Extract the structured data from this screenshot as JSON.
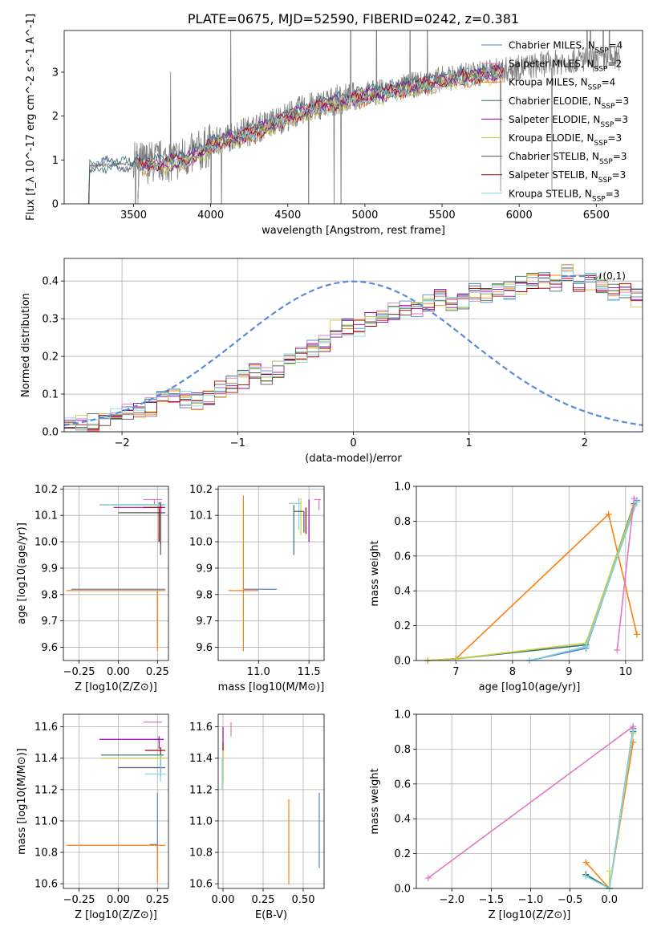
{
  "colors": {
    "c1": "#5b84c4",
    "c2": "#e377c2",
    "c3": "#ff7f0e",
    "c4": "#2f6f6f",
    "c5": "#9400a8",
    "c6": "#cccc44",
    "c7": "#555555",
    "c8": "#a00000",
    "c9": "#7fd6e8",
    "spectrum": "#808080",
    "gauss": "#5b8bd6"
  },
  "chart_data": [
    {
      "id": "spectrum",
      "type": "line",
      "title": "PLATE=0675, MJD=52590, FIBERID=0242, z=0.381",
      "xlabel": "wavelength [Angstrom, rest frame]",
      "ylabel": "Flux [f_λ 10^-17 erg cm^-2 s^-1 A^-1]",
      "xlim": [
        3050,
        6800
      ],
      "ylim": [
        0,
        3.95
      ],
      "xticks": [
        "3500",
        "4000",
        "4500",
        "5000",
        "5500",
        "6000",
        "6500"
      ],
      "yticks": [
        "0",
        "1",
        "2",
        "3"
      ],
      "grid": false,
      "legend_loc": "upper right",
      "series": [
        {
          "name": "Chabrier MILES, N_SSP=4"
        },
        {
          "name": "Salpeter MILES, N_SSP=2"
        },
        {
          "name": "Kroupa MILES, N_SSP=4"
        },
        {
          "name": "Chabrier ELODIE, N_SSP=3"
        },
        {
          "name": "Salpeter ELODIE, N_SSP=3"
        },
        {
          "name": "Kroupa ELODIE, N_SSP=3"
        },
        {
          "name": "Chabrier STELIB, N_SSP=3"
        },
        {
          "name": "Salpeter STELIB, N_SSP=3"
        },
        {
          "name": "Kroupa STELIB, N_SSP=3"
        }
      ],
      "model_continuum": {
        "x": [
          3200,
          3300,
          3400,
          3500,
          3600,
          3700,
          3800,
          3900,
          4000,
          4100,
          4200,
          4300,
          4400,
          4500,
          4600,
          4700,
          4800,
          4900,
          5000,
          5100,
          5200,
          5300,
          5400,
          5500,
          5600,
          5700,
          5800,
          5900,
          6000,
          6100,
          6200,
          6300,
          6400,
          6500,
          6600
        ],
        "y": [
          0.85,
          0.88,
          0.9,
          0.92,
          0.95,
          0.98,
          1.02,
          1.15,
          1.35,
          1.5,
          1.62,
          1.72,
          1.85,
          2.0,
          2.15,
          2.25,
          2.35,
          2.42,
          2.5,
          2.55,
          2.62,
          2.7,
          2.75,
          2.85,
          2.9,
          2.95,
          3.0,
          3.05,
          3.1,
          3.15,
          3.2,
          3.25,
          3.28,
          3.3,
          3.32
        ]
      }
    },
    {
      "id": "residuals",
      "type": "histogram",
      "xlabel": "(data-model)/error",
      "ylabel": "Normed distribution",
      "xlim": [
        -2.5,
        2.5
      ],
      "ylim": [
        0,
        0.46
      ],
      "xticks": [
        "−2",
        "−1",
        "0",
        "1",
        "2"
      ],
      "yticks": [
        "0.0",
        "0.1",
        "0.2",
        "0.3",
        "0.4"
      ],
      "grid": true,
      "legend": "𝒩(0,1)",
      "bin_edges_start": -2.5,
      "bin_width": 0.1,
      "hist": [
        0.02,
        0.02,
        0.025,
        0.035,
        0.04,
        0.05,
        0.06,
        0.065,
        0.09,
        0.095,
        0.085,
        0.08,
        0.09,
        0.11,
        0.125,
        0.14,
        0.155,
        0.15,
        0.165,
        0.19,
        0.205,
        0.22,
        0.235,
        0.275,
        0.28,
        0.275,
        0.3,
        0.31,
        0.32,
        0.33,
        0.33,
        0.345,
        0.355,
        0.34,
        0.35,
        0.37,
        0.365,
        0.38,
        0.375,
        0.39,
        0.4,
        0.405,
        0.395,
        0.42,
        0.39,
        0.4,
        0.38,
        0.37,
        0.38,
        0.355,
        0.365,
        0.35,
        0.355,
        0.33,
        0.3,
        0.31,
        0.29,
        0.27,
        0.265,
        0.25,
        0.24,
        0.22,
        0.2,
        0.21,
        0.185,
        0.175,
        0.16,
        0.15,
        0.14,
        0.13,
        0.12,
        0.11,
        0.095,
        0.09,
        0.08,
        0.075,
        0.07,
        0.06,
        0.055,
        0.05,
        0.045,
        0.04,
        0.045,
        0.04,
        0.04,
        0.035,
        0.03,
        0.04,
        0.035,
        0.03,
        0.035,
        0.04,
        0.04,
        0.035,
        0.035,
        0.04,
        0.04,
        0.035,
        0.04,
        0.04
      ]
    },
    {
      "id": "age_vs_Z",
      "type": "scatter",
      "xlabel": "Z [log10(Z/Z⊙)]",
      "ylabel": "age [log10(age/yr)]",
      "xlim": [
        -0.35,
        0.32
      ],
      "ylim": [
        9.55,
        10.21
      ],
      "xticks": [
        "−0.25",
        "0.00",
        "0.25"
      ],
      "yticks": [
        "9.6",
        "9.7",
        "9.8",
        "9.9",
        "10.0",
        "10.1",
        "10.2"
      ],
      "grid": true
    },
    {
      "id": "age_vs_mass",
      "type": "scatter",
      "xlabel": "mass [log10(M/M⊙)]",
      "ylabel": "",
      "xlim": [
        10.6,
        11.65
      ],
      "ylim": [
        9.55,
        10.21
      ],
      "xticks": [
        "11.0",
        "11.5"
      ],
      "yticks": [
        "9.6",
        "9.7",
        "9.8",
        "9.9",
        "10.0",
        "10.1",
        "10.2"
      ],
      "grid": true
    },
    {
      "id": "weight_vs_age",
      "type": "line",
      "xlabel": "age [log10(age/yr)]",
      "ylabel": "mass weight",
      "xlim": [
        6.3,
        10.3
      ],
      "ylim": [
        0,
        1.0
      ],
      "xticks": [
        "7",
        "8",
        "9",
        "10"
      ],
      "yticks": [
        "0.0",
        "0.2",
        "0.4",
        "0.6",
        "0.8",
        "1.0"
      ],
      "grid": true,
      "series": [
        {
          "color": "c1",
          "x": [
            8.3,
            9.3,
            10.2
          ],
          "y": [
            0.0,
            0.07,
            0.92
          ]
        },
        {
          "color": "c3",
          "x": [
            6.5,
            7.0,
            9.7,
            10.2
          ],
          "y": [
            0.0,
            0.01,
            0.84,
            0.15
          ]
        },
        {
          "color": "c4",
          "x": [
            6.5,
            7.0,
            9.3,
            10.15
          ],
          "y": [
            0.0,
            0.01,
            0.09,
            0.9
          ]
        },
        {
          "color": "c6",
          "x": [
            6.5,
            7.0,
            9.3,
            10.15
          ],
          "y": [
            0.0,
            0.01,
            0.1,
            0.89
          ]
        },
        {
          "color": "c9",
          "x": [
            8.3,
            9.3,
            10.2
          ],
          "y": [
            0.0,
            0.08,
            0.91
          ]
        },
        {
          "color": "c2",
          "x": [
            9.85,
            10.15
          ],
          "y": [
            0.06,
            0.93
          ]
        }
      ]
    },
    {
      "id": "mass_vs_Z",
      "type": "scatter",
      "xlabel": "Z [log10(Z/Z⊙)]",
      "ylabel": "mass [log10(M/M⊙)]",
      "xlim": [
        -0.35,
        0.32
      ],
      "ylim": [
        10.57,
        11.68
      ],
      "xticks": [
        "−0.25",
        "0.00",
        "0.25"
      ],
      "yticks": [
        "10.6",
        "10.8",
        "11.0",
        "11.2",
        "11.4",
        "11.6"
      ],
      "grid": true
    },
    {
      "id": "mass_vs_ebv",
      "type": "scatter",
      "xlabel": "E(B-V)",
      "ylabel": "",
      "xlim": [
        -0.03,
        0.63
      ],
      "ylim": [
        10.57,
        11.68
      ],
      "xticks": [
        "0.00",
        "0.25",
        "0.50"
      ],
      "yticks": [
        "10.6",
        "10.8",
        "11.0",
        "11.2",
        "11.4",
        "11.6"
      ],
      "grid": true
    },
    {
      "id": "weight_vs_Z",
      "type": "line",
      "xlabel": "Z [log10(Z/Z⊙)]",
      "ylabel": "mass weight",
      "xlim": [
        -2.45,
        0.42
      ],
      "ylim": [
        0,
        1.0
      ],
      "xticks": [
        "−2.0",
        "−1.5",
        "−1.0",
        "−0.5",
        "0.0"
      ],
      "yticks": [
        "0.0",
        "0.2",
        "0.4",
        "0.6",
        "0.8",
        "1.0"
      ],
      "grid": true,
      "series": [
        {
          "color": "c1",
          "x": [
            -0.3,
            0.0,
            0.3
          ],
          "y": [
            0.08,
            0.0,
            0.92
          ]
        },
        {
          "color": "c3",
          "x": [
            -0.3,
            0.0,
            0.3
          ],
          "y": [
            0.15,
            0.0,
            0.84
          ]
        },
        {
          "color": "c4",
          "x": [
            -0.3,
            0.0,
            0.3
          ],
          "y": [
            0.08,
            0.0,
            0.9
          ]
        },
        {
          "color": "c6",
          "x": [
            0.0,
            0.0,
            0.3
          ],
          "y": [
            0.1,
            0.0,
            0.89
          ]
        },
        {
          "color": "c9",
          "x": [
            -0.3,
            0.0,
            0.3
          ],
          "y": [
            0.07,
            0.0,
            0.91
          ]
        },
        {
          "color": "c2",
          "x": [
            -2.3,
            0.3
          ],
          "y": [
            0.06,
            0.93
          ]
        }
      ]
    }
  ]
}
